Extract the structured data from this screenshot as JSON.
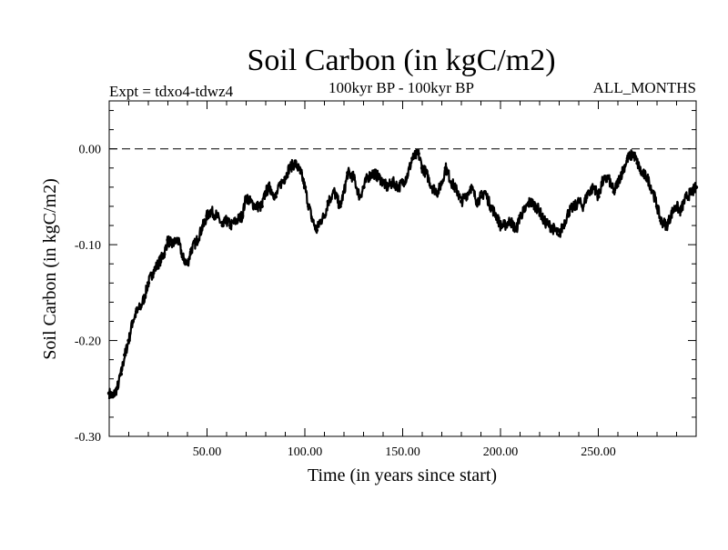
{
  "chart_data": {
    "type": "line",
    "title": "Soil Carbon (in kgC/m2)",
    "subtitle": "100kyr BP - 100kyr BP",
    "experiment": "Expt = tdxo4-tdwz4",
    "months": "ALL_MONTHS",
    "xlabel": "Time (in years since start)",
    "ylabel": "Soil Carbon (in kgC/m2)",
    "xlim": [
      0,
      300
    ],
    "ylim": [
      -0.3,
      0.05
    ],
    "x_ticks": [
      50,
      100,
      150,
      200,
      250
    ],
    "x_tick_labels": [
      "50.00",
      "100.00",
      "150.00",
      "200.00",
      "250.00"
    ],
    "y_ticks": [
      0.0,
      -0.1,
      -0.2,
      -0.3
    ],
    "y_tick_labels": [
      "0.00",
      "-0.10",
      "-0.20",
      "-0.30"
    ],
    "reference_line": {
      "y": 0.0,
      "style": "dashed"
    },
    "grid": false,
    "series": [
      {
        "x": [
          0,
          2,
          4,
          6,
          8,
          10,
          12,
          14,
          16,
          18,
          20,
          22,
          25,
          28,
          30,
          32,
          35,
          38,
          40,
          42,
          45,
          48,
          50,
          52,
          55,
          58,
          60,
          62,
          65,
          68,
          70,
          72,
          75,
          78,
          80,
          82,
          85,
          88,
          90,
          92,
          95,
          98,
          100,
          102,
          104,
          106,
          108,
          110,
          112,
          115,
          118,
          120,
          122,
          125,
          128,
          130,
          132,
          135,
          138,
          140,
          142,
          145,
          148,
          150,
          152,
          155,
          158,
          160,
          162,
          165,
          168,
          170,
          172,
          175,
          178,
          180,
          182,
          185,
          188,
          190,
          192,
          195,
          198,
          200,
          202,
          205,
          208,
          210,
          212,
          215,
          218,
          220,
          222,
          225,
          228,
          230,
          232,
          235,
          238,
          240,
          242,
          245,
          248,
          250,
          252,
          255,
          258,
          260,
          262,
          265,
          268,
          270,
          272,
          275,
          278,
          280,
          282,
          285,
          288,
          290,
          292,
          295,
          298,
          300
        ],
        "y": [
          -0.255,
          -0.258,
          -0.25,
          -0.235,
          -0.215,
          -0.2,
          -0.18,
          -0.17,
          -0.165,
          -0.155,
          -0.14,
          -0.13,
          -0.12,
          -0.11,
          -0.095,
          -0.1,
          -0.095,
          -0.115,
          -0.12,
          -0.105,
          -0.095,
          -0.08,
          -0.07,
          -0.065,
          -0.07,
          -0.08,
          -0.075,
          -0.08,
          -0.075,
          -0.07,
          -0.05,
          -0.055,
          -0.06,
          -0.06,
          -0.045,
          -0.04,
          -0.05,
          -0.035,
          -0.03,
          -0.02,
          -0.015,
          -0.025,
          -0.04,
          -0.06,
          -0.075,
          -0.085,
          -0.075,
          -0.07,
          -0.055,
          -0.045,
          -0.06,
          -0.045,
          -0.025,
          -0.03,
          -0.05,
          -0.04,
          -0.03,
          -0.025,
          -0.03,
          -0.035,
          -0.04,
          -0.035,
          -0.04,
          -0.035,
          -0.03,
          -0.01,
          -0.005,
          -0.02,
          -0.025,
          -0.04,
          -0.045,
          -0.035,
          -0.02,
          -0.035,
          -0.045,
          -0.055,
          -0.05,
          -0.04,
          -0.055,
          -0.05,
          -0.045,
          -0.06,
          -0.07,
          -0.08,
          -0.08,
          -0.075,
          -0.085,
          -0.07,
          -0.065,
          -0.055,
          -0.06,
          -0.065,
          -0.075,
          -0.08,
          -0.085,
          -0.09,
          -0.08,
          -0.065,
          -0.06,
          -0.055,
          -0.06,
          -0.045,
          -0.04,
          -0.05,
          -0.035,
          -0.03,
          -0.045,
          -0.035,
          -0.025,
          -0.01,
          -0.005,
          -0.015,
          -0.025,
          -0.03,
          -0.045,
          -0.06,
          -0.075,
          -0.08,
          -0.065,
          -0.06,
          -0.065,
          -0.05,
          -0.045,
          -0.04
        ]
      }
    ]
  }
}
